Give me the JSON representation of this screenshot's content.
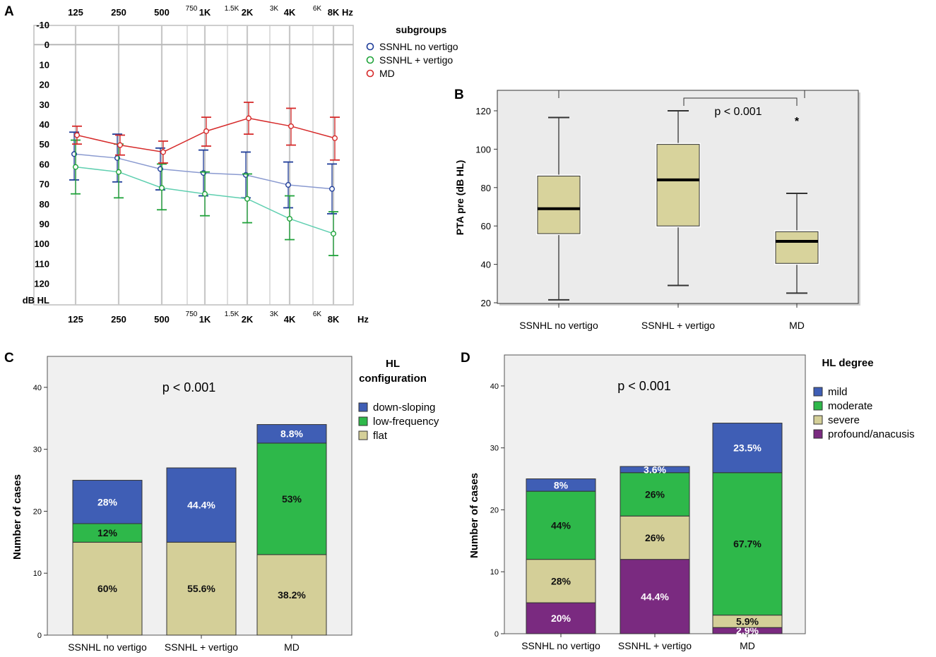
{
  "panels": {
    "a": "A",
    "b": "B",
    "c": "C",
    "d": "D"
  },
  "chart_data": [
    {
      "id": "A",
      "type": "line",
      "title": "",
      "ylabel": "dB HL",
      "xlabel": "Hz",
      "x_ticks_top": [
        "125",
        "250",
        "500",
        "750",
        "1K",
        "1.5K",
        "2K",
        "3K",
        "4K",
        "6K",
        "8K"
      ],
      "x_ticks_bottom": [
        "125",
        "250",
        "500",
        "750",
        "1K",
        "1.5K",
        "2K",
        "3K",
        "4K",
        "6K",
        "8K"
      ],
      "y_ticks": [
        "-10",
        "0",
        "10",
        "20",
        "30",
        "40",
        "50",
        "60",
        "70",
        "80",
        "90",
        "100",
        "110",
        "120"
      ],
      "ylim": [
        -10,
        130
      ],
      "legend_title": "subgroups",
      "categories": [
        "125",
        "250",
        "500",
        "1K",
        "2K",
        "4K",
        "8K"
      ],
      "series": [
        {
          "name": "SSNHL no vertigo",
          "color": "#1f3d99",
          "line_color": "#8a9ad0",
          "values": [
            55,
            57,
            62.5,
            64.5,
            65.5,
            70.5,
            72.5
          ],
          "low": [
            44,
            45,
            52,
            53,
            54,
            59,
            60
          ],
          "high": [
            68,
            69,
            73,
            76,
            77,
            82,
            85
          ]
        },
        {
          "name": "SSNHL + vertigo",
          "color": "#1fa33a",
          "line_color": "#5fcfb0",
          "values": [
            61.5,
            64,
            72,
            75,
            77.5,
            87.5,
            95
          ],
          "low": [
            48,
            50,
            60,
            64,
            65,
            76,
            84
          ],
          "high": [
            75,
            77,
            83,
            86,
            89.5,
            98,
            106
          ]
        },
        {
          "name": "MD",
          "color": "#d62a2a",
          "line_color": "#d62a2a",
          "values": [
            45.5,
            50.5,
            54,
            43.5,
            37,
            41,
            47
          ],
          "low": [
            41,
            45.5,
            48.5,
            36.5,
            29,
            32,
            36.5
          ],
          "high": [
            50,
            55.5,
            59.5,
            51,
            45,
            50.5,
            58
          ]
        }
      ]
    },
    {
      "id": "B",
      "type": "box",
      "ylabel": "PTA pre (dB HL)",
      "ylim": [
        20,
        130
      ],
      "y_ticks": [
        "20",
        "40",
        "60",
        "80",
        "100",
        "120"
      ],
      "categories": [
        "SSNHL no vertigo",
        "SSNHL + vertigo",
        "MD"
      ],
      "boxes": [
        {
          "min": 21.5,
          "q1": 56,
          "median": 69,
          "q3": 86,
          "max": 116.5
        },
        {
          "min": 29,
          "q1": 60,
          "median": 84,
          "q3": 102.5,
          "max": 120
        },
        {
          "min": 25,
          "q1": 40.5,
          "median": 52,
          "q3": 57,
          "max": 77,
          "outlier": 116
        }
      ],
      "annotation": "p < 0.001",
      "outlier_marker": "*"
    },
    {
      "id": "C",
      "type": "stacked-bar",
      "ylabel": "Number of cases",
      "ylim": [
        0,
        45
      ],
      "y_ticks": [
        "0",
        "10",
        "20",
        "30",
        "40"
      ],
      "categories": [
        "SSNHL no vertigo",
        "SSNHL + vertigo",
        "MD"
      ],
      "legend_title_1": "HL",
      "legend_title_2": "configuration",
      "annotation": "p < 0.001",
      "series": [
        {
          "name": "flat",
          "color": "#d4cf98",
          "values": [
            15,
            15,
            13
          ],
          "labels": [
            "60%",
            "55.6%",
            "38.2%"
          ],
          "label_color": "#111111"
        },
        {
          "name": "low-frequency",
          "color": "#2eb84a",
          "values": [
            3,
            0,
            18
          ],
          "labels": [
            "12%",
            "",
            "53%"
          ],
          "label_color": "#111111"
        },
        {
          "name": "down-sloping",
          "color": "#3f5eb5",
          "values": [
            7,
            12,
            3
          ],
          "labels": [
            "28%",
            "44.4%",
            "8.8%"
          ],
          "label_color": "#ffffff"
        }
      ],
      "legend_order": [
        "down-sloping",
        "low-frequency",
        "flat"
      ]
    },
    {
      "id": "D",
      "type": "stacked-bar",
      "ylabel": "Number of cases",
      "ylim": [
        0,
        45
      ],
      "y_ticks": [
        "0",
        "10",
        "20",
        "30",
        "40"
      ],
      "categories": [
        "SSNHL no vertigo",
        "SSNHL + vertigo",
        "MD"
      ],
      "legend_title": "HL degree",
      "annotation": "p < 0.001",
      "series": [
        {
          "name": "profound/anacusis",
          "color": "#7a2a80",
          "values": [
            5,
            12,
            1
          ],
          "labels": [
            "20%",
            "44.4%",
            "2.9%"
          ],
          "label_color": "#ffffff"
        },
        {
          "name": "severe",
          "color": "#d4cf98",
          "values": [
            7,
            7,
            2
          ],
          "labels": [
            "28%",
            "26%",
            "5.9%"
          ],
          "label_color": "#111111"
        },
        {
          "name": "moderate",
          "color": "#2eb84a",
          "values": [
            11,
            7,
            23
          ],
          "labels": [
            "44%",
            "26%",
            "67.7%"
          ],
          "label_color": "#111111"
        },
        {
          "name": "mild",
          "color": "#3f5eb5",
          "values": [
            2,
            1,
            8
          ],
          "labels": [
            "8%",
            "3.6%",
            "23.5%"
          ],
          "label_color": "#ffffff"
        }
      ],
      "legend_order": [
        "mild",
        "moderate",
        "severe",
        "profound/anacusis"
      ]
    }
  ]
}
